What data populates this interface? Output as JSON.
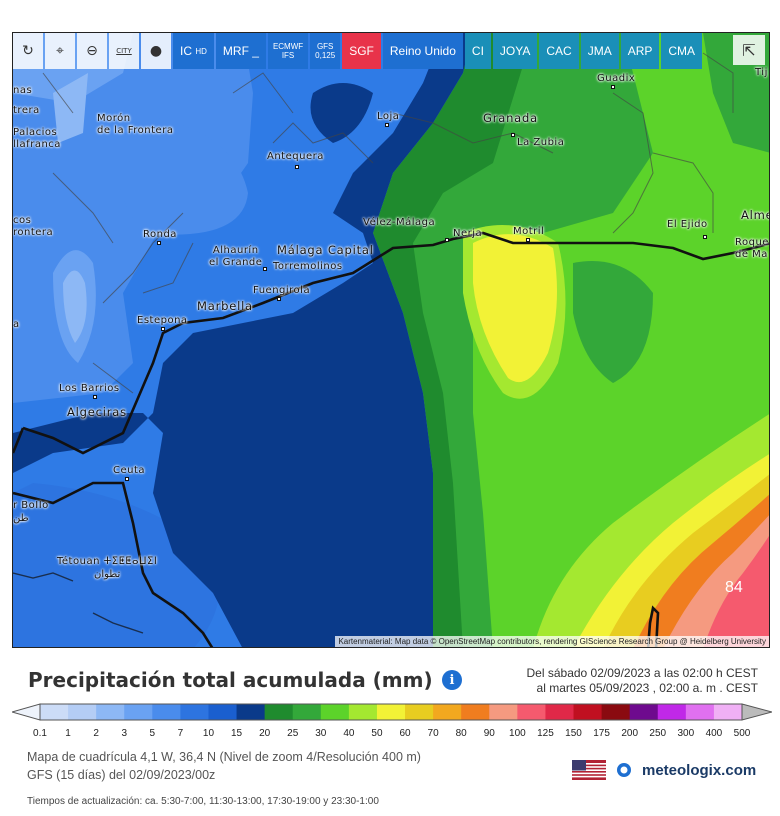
{
  "toolbar": {
    "refresh_icon": "refresh-icon",
    "location_icon": "location-pin-icon",
    "zoom_icon": "zoom-out-icon",
    "city_label": "CITY",
    "balloon_icon": "balloon-icon",
    "models": [
      {
        "label": "IC",
        "sub": "HD"
      },
      {
        "label": "MRF",
        "sub": "_"
      },
      {
        "label": "ECMWF",
        "sub": "IFS"
      },
      {
        "label": "GFS",
        "sub": "0,125"
      },
      {
        "label": "SGF",
        "sub": ""
      },
      {
        "label": "Reino Unido",
        "sub": ""
      },
      {
        "label": "CI",
        "sub": ""
      },
      {
        "label": "JOYA",
        "sub": ""
      },
      {
        "label": "CAC",
        "sub": ""
      },
      {
        "label": "JMA",
        "sub": ""
      },
      {
        "label": "ARP",
        "sub": ""
      },
      {
        "label": "CMA",
        "sub": ""
      }
    ],
    "share_icon": "share-icon"
  },
  "map": {
    "places": {
      "guadix": "Guadix",
      "granada": "Granada",
      "la_zubia": "La Zubia",
      "loja": "Loja",
      "moron": "Morón\nde la Frontera",
      "palacios": "Palacios\nllafranca",
      "nas": "nas",
      "trera": "trera",
      "antequera": "Antequera",
      "velez": "Vélez-Málaga",
      "nerja": "Nerja",
      "motril": "Motril",
      "el_ejido": "El Ejido",
      "almeria": "Alme",
      "roquetas": "Roque\nde Ma",
      "tij": "Tij",
      "cos": "cos\nrontera",
      "ronda": "Ronda",
      "alhaurin": "Alhaurín\nel Grande",
      "malaga": "Málaga Capital",
      "torremolinos": "Torremolinos",
      "fuengirola": "Fuengirola",
      "marbella": "Marbella",
      "estepona": "Estepona",
      "a": "a",
      "los_barrios": "Los Barrios",
      "algeciras": "Algeciras",
      "ceuta": "Ceuta",
      "rbolio": "r BoIIo\nطن",
      "tetouan": "Tétouan ⵜⵉⵟⵟⴰⵡⵉⵏ\nتطوان"
    },
    "max_value": "84",
    "attribution": "Kartenmaterial: Map data © OpenStreetMap contributors, rendering GIScience Research Group @ Heidelberg University"
  },
  "legend": {
    "title": "Precipitación total acumulada (mm)",
    "info_icon": "info-icon",
    "period_line1": "Del sábado 02/09/2023 a  las 02:00 h  CEST",
    "period_line2": "al martes 05/09/2023 ,  02:00 a. m . CEST",
    "ticks": [
      "0.1",
      "1",
      "2",
      "3",
      "5",
      "7",
      "10",
      "15",
      "20",
      "25",
      "30",
      "40",
      "50",
      "60",
      "70",
      "80",
      "90",
      "100",
      "125",
      "150",
      "175",
      "200",
      "250",
      "300",
      "400",
      "500"
    ],
    "colors": [
      "#ccdcf7",
      "#b4cdf5",
      "#8db8f5",
      "#6aa2f2",
      "#4a8cec",
      "#2d74e0",
      "#1a5fcf",
      "#0a3a8a",
      "#1f8b2e",
      "#33a83a",
      "#5cd32a",
      "#a4e830",
      "#f2f236",
      "#e8cd20",
      "#f2a81f",
      "#f07d1f",
      "#f59a80",
      "#f55a6e",
      "#e02848",
      "#c01020",
      "#8a0a10",
      "#6e0a8e",
      "#c028e8",
      "#e070f0",
      "#f0b0f5",
      "#f5e0f8"
    ],
    "scale_colors_note": ""
  },
  "meta": {
    "grid": "Mapa de cuadrícula 4,1 W, 36,4 N  (Nivel de zoom 4/Resolución 400 m)",
    "model": "GFS  (15 días)  del 02/09/2023/00z",
    "updates": "Tiempos de actualización: ca. 5:30-7:00, 11:30-13:00, 17:30-19:00 y 23:30-1:00",
    "brand": "meteologix.com",
    "flag_icon": "us-flag-icon",
    "brand_icon": "meteologix-logo-icon"
  }
}
